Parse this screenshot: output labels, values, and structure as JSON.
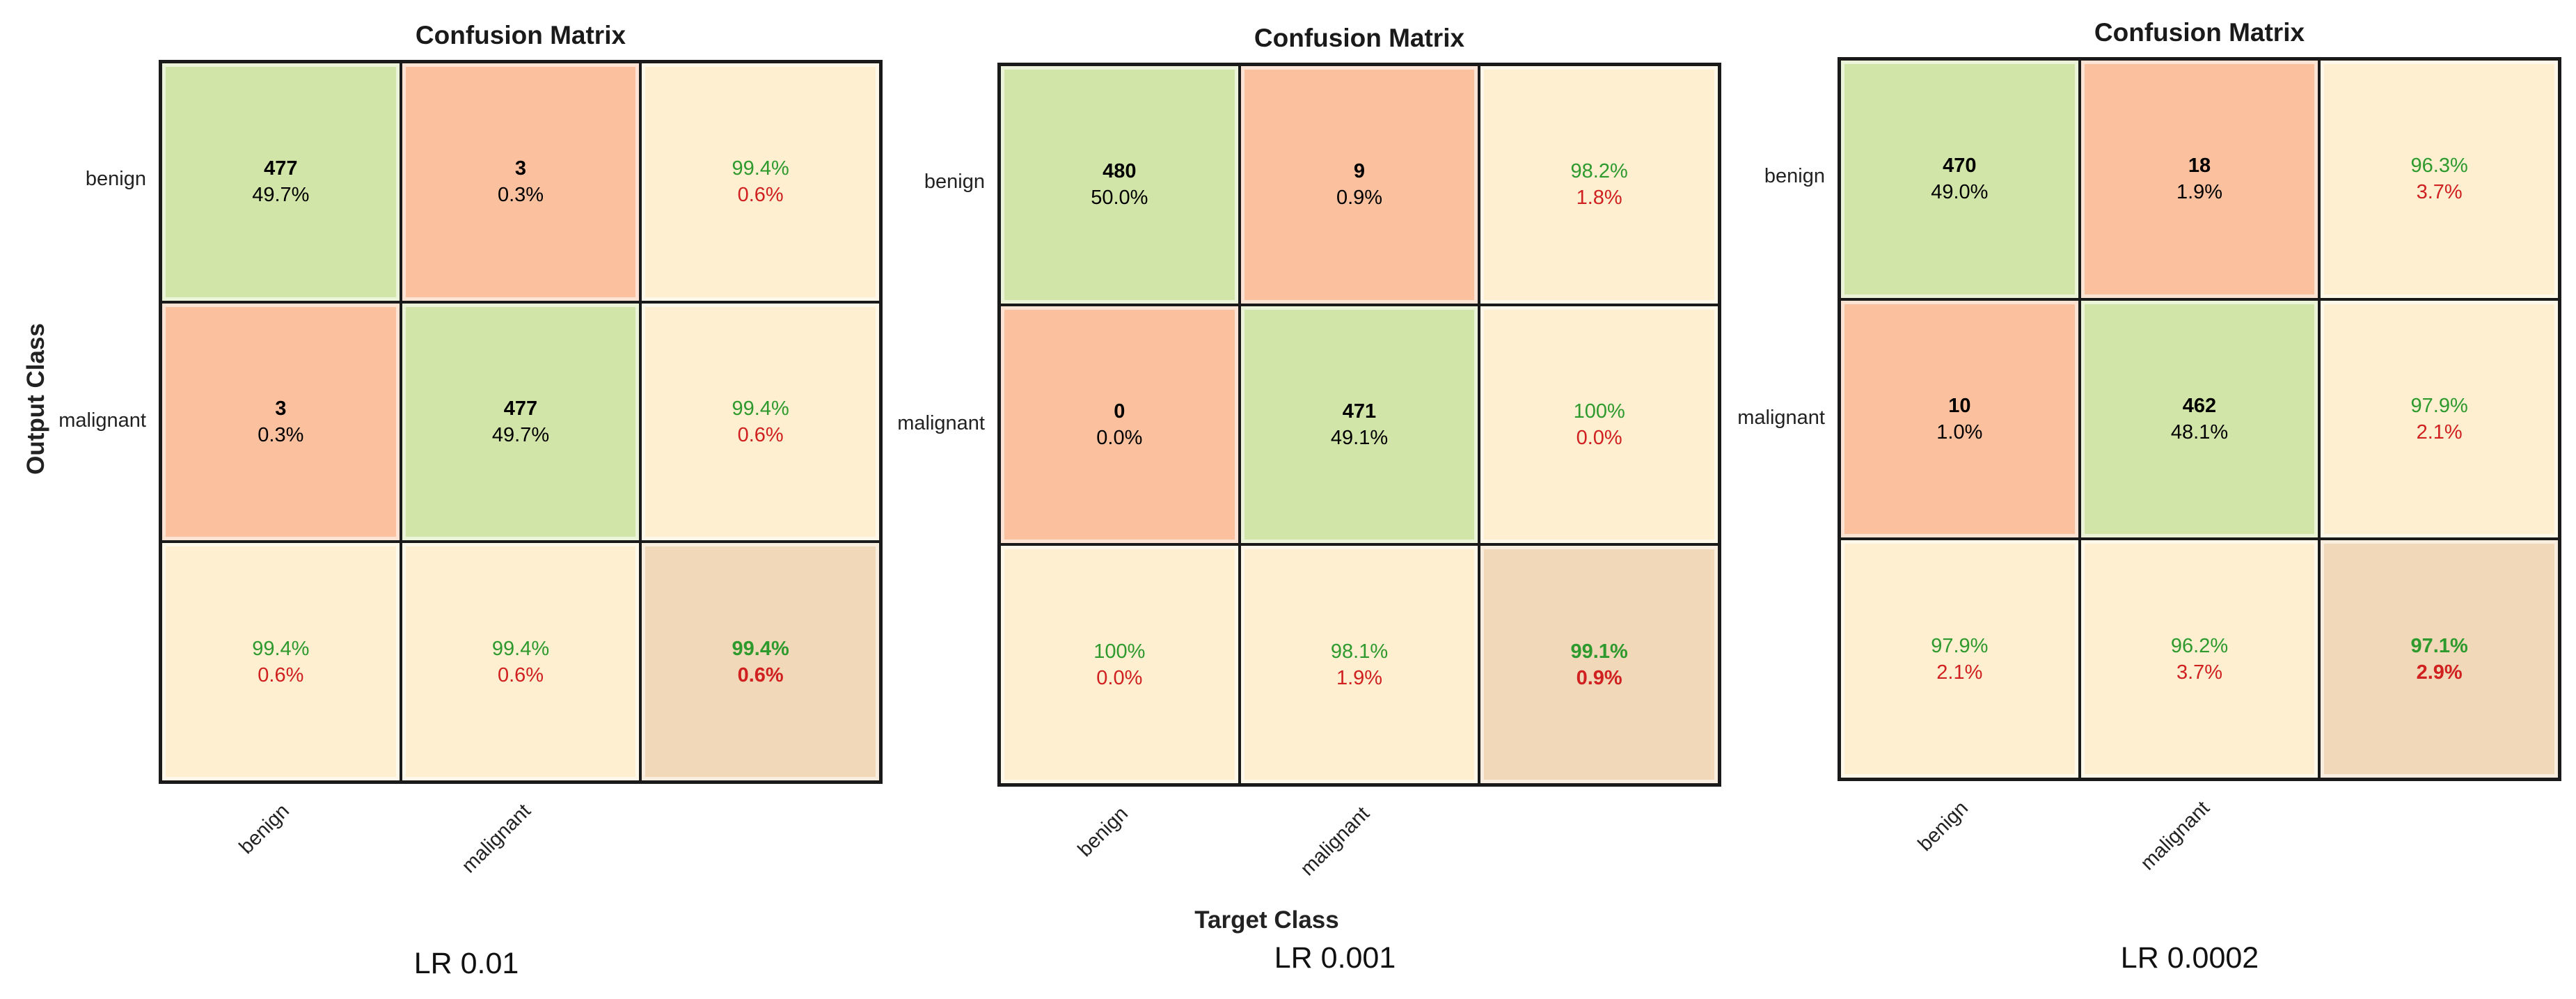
{
  "axes": {
    "ylabel": "Output Class",
    "xlabel": "Target Class"
  },
  "chart_data": [
    {
      "type": "heatmap",
      "title": "Confusion Matrix",
      "caption": "LR 0.01",
      "row_labels": [
        "benign",
        "malignant"
      ],
      "col_labels": [
        "benign",
        "malignant"
      ],
      "matrix": [
        [
          {
            "count": "477",
            "pct": "49.7%"
          },
          {
            "count": "3",
            "pct": "0.3%"
          }
        ],
        [
          {
            "count": "3",
            "pct": "0.3%"
          },
          {
            "count": "477",
            "pct": "49.7%"
          }
        ]
      ],
      "row_summary": [
        {
          "correct": "99.4%",
          "error": "0.6%"
        },
        {
          "correct": "99.4%",
          "error": "0.6%"
        }
      ],
      "col_summary": [
        {
          "correct": "99.4%",
          "error": "0.6%"
        },
        {
          "correct": "99.4%",
          "error": "0.6%"
        }
      ],
      "overall": {
        "correct": "99.4%",
        "error": "0.6%"
      }
    },
    {
      "type": "heatmap",
      "title": "Confusion Matrix",
      "caption": "LR 0.001",
      "row_labels": [
        "benign",
        "malignant"
      ],
      "col_labels": [
        "benign",
        "malignant"
      ],
      "matrix": [
        [
          {
            "count": "480",
            "pct": "50.0%"
          },
          {
            "count": "9",
            "pct": "0.9%"
          }
        ],
        [
          {
            "count": "0",
            "pct": "0.0%"
          },
          {
            "count": "471",
            "pct": "49.1%"
          }
        ]
      ],
      "row_summary": [
        {
          "correct": "98.2%",
          "error": "1.8%"
        },
        {
          "correct": "100%",
          "error": "0.0%"
        }
      ],
      "col_summary": [
        {
          "correct": "100%",
          "error": "0.0%"
        },
        {
          "correct": "98.1%",
          "error": "1.9%"
        }
      ],
      "overall": {
        "correct": "99.1%",
        "error": "0.9%"
      }
    },
    {
      "type": "heatmap",
      "title": "Confusion Matrix",
      "caption": "LR 0.0002",
      "row_labels": [
        "benign",
        "malignant"
      ],
      "col_labels": [
        "benign",
        "malignant"
      ],
      "matrix": [
        [
          {
            "count": "470",
            "pct": "49.0%"
          },
          {
            "count": "18",
            "pct": "1.9%"
          }
        ],
        [
          {
            "count": "10",
            "pct": "1.0%"
          },
          {
            "count": "462",
            "pct": "48.1%"
          }
        ]
      ],
      "row_summary": [
        {
          "correct": "96.3%",
          "error": "3.7%"
        },
        {
          "correct": "97.9%",
          "error": "2.1%"
        }
      ],
      "col_summary": [
        {
          "correct": "97.9%",
          "error": "2.1%"
        },
        {
          "correct": "96.2%",
          "error": "3.7%"
        }
      ],
      "overall": {
        "correct": "97.1%",
        "error": "2.9%"
      }
    }
  ]
}
